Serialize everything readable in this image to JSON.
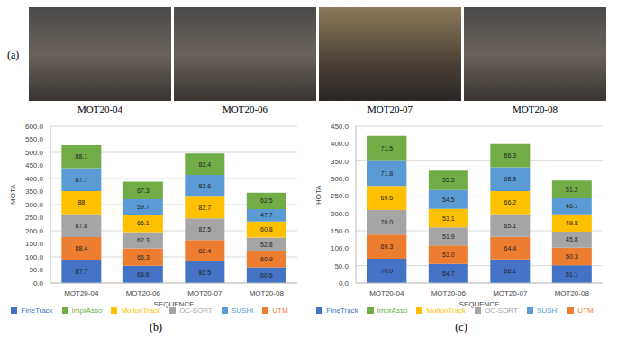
{
  "images": {
    "label": "(a)",
    "captions": [
      "MOT20-04",
      "MOT20-06",
      "MOT20-07",
      "MOT20-08"
    ]
  },
  "chart_data": [
    {
      "type": "bar",
      "label": "(b)",
      "x_label": "SEQUENCE",
      "y_label": "MOTA",
      "categories": [
        "MOT20-04",
        "MOT20-06",
        "MOT20-07",
        "MOT20-08"
      ],
      "stacked": true,
      "data_labels": true,
      "grid": true,
      "legend": "bottom",
      "ylim": [
        0,
        600
      ],
      "yticks": [
        {
          "value": 0,
          "label": "0.0"
        },
        {
          "value": 50,
          "label": "50.0"
        },
        {
          "value": 100,
          "label": "100.0"
        },
        {
          "value": 150,
          "label": "150.0"
        },
        {
          "value": 200,
          "label": "200.0"
        },
        {
          "value": 250,
          "label": "250.0"
        },
        {
          "value": 300,
          "label": "300.0"
        },
        {
          "value": 350,
          "label": "350.0"
        },
        {
          "value": 400,
          "label": "400.0"
        },
        {
          "value": 450,
          "label": "450.0"
        },
        {
          "value": 500,
          "label": "500.0"
        },
        {
          "value": 550,
          "label": "550.0"
        },
        {
          "value": 600,
          "label": "600.0"
        }
      ],
      "series": [
        {
          "name": "FineTrack",
          "color": "#4472c4",
          "values": [
            87.7,
            66.6,
            82.5,
            60.6
          ]
        },
        {
          "name": "UTM",
          "color": "#ed7d31",
          "values": [
            88.4,
            66.3,
            82.4,
            60.9
          ]
        },
        {
          "name": "OC-SORT",
          "color": "#a5a5a5",
          "values": [
            87.8,
            62.3,
            82.5,
            52.8
          ]
        },
        {
          "name": "MotionTrack",
          "color": "#ffc000",
          "values": [
            88,
            66.1,
            82.7,
            60.8
          ]
        },
        {
          "name": "SUSHI",
          "color": "#5b9bd5",
          "values": [
            87.7,
            59.7,
            83.6,
            47.7
          ]
        },
        {
          "name": "ImprAsso",
          "color": "#70ad47",
          "values": [
            88.1,
            67.3,
            82.4,
            62.5
          ]
        }
      ]
    },
    {
      "type": "bar",
      "label": "(c)",
      "x_label": "SEQUENCE",
      "y_label": "HOTA",
      "categories": [
        "MOT20-04",
        "MOT20-06",
        "MOT20-07",
        "MOT20-08"
      ],
      "stacked": true,
      "data_labels": true,
      "grid": true,
      "legend": "bottom",
      "ylim": [
        0,
        450
      ],
      "yticks": [
        {
          "value": 0,
          "label": "0.0"
        },
        {
          "value": 50,
          "label": "50.0"
        },
        {
          "value": 100,
          "label": "100.0"
        },
        {
          "value": 150,
          "label": "150.0"
        },
        {
          "value": 200,
          "label": "200.0"
        },
        {
          "value": 250,
          "label": "250.0"
        },
        {
          "value": 300,
          "label": "300.0"
        },
        {
          "value": 350,
          "label": "350.0"
        },
        {
          "value": 400,
          "label": "400.0"
        },
        {
          "value": 450,
          "label": "450.0"
        }
      ],
      "series": [
        {
          "name": "FineTrack",
          "color": "#4472c4",
          "values": [
            70.0,
            54.7,
            68.1,
            51.1
          ],
          "value_labels": [
            "70.0",
            "54.7",
            "68.1",
            "51.1"
          ]
        },
        {
          "name": "UTM",
          "color": "#ed7d31",
          "values": [
            69.3,
            53.0,
            64.4,
            50.3
          ],
          "value_labels": [
            "69.3",
            "53.0",
            "64.4",
            "50.3"
          ]
        },
        {
          "name": "OC-SORT",
          "color": "#a5a5a5",
          "values": [
            70.0,
            51.9,
            65.1,
            45.8
          ],
          "value_labels": [
            "70.0",
            "51.9",
            "65.1",
            "45.8"
          ]
        },
        {
          "name": "MotionTrack",
          "color": "#ffc000",
          "values": [
            69.6,
            53.1,
            66.2,
            49.8
          ],
          "value_labels": [
            "69.6",
            "53.1",
            "66.2",
            "49.8"
          ]
        },
        {
          "name": "SUSHI",
          "color": "#5b9bd5",
          "values": [
            71.8,
            54.5,
            68.8,
            46.1
          ],
          "value_labels": [
            "71.8",
            "54.5",
            "68.8",
            "46.1"
          ]
        },
        {
          "name": "ImprAsso",
          "color": "#70ad47",
          "values": [
            71.5,
            55.5,
            66.3,
            51.2
          ],
          "value_labels": [
            "71.5",
            "55.5",
            "66.3",
            "51.2"
          ]
        }
      ]
    }
  ]
}
